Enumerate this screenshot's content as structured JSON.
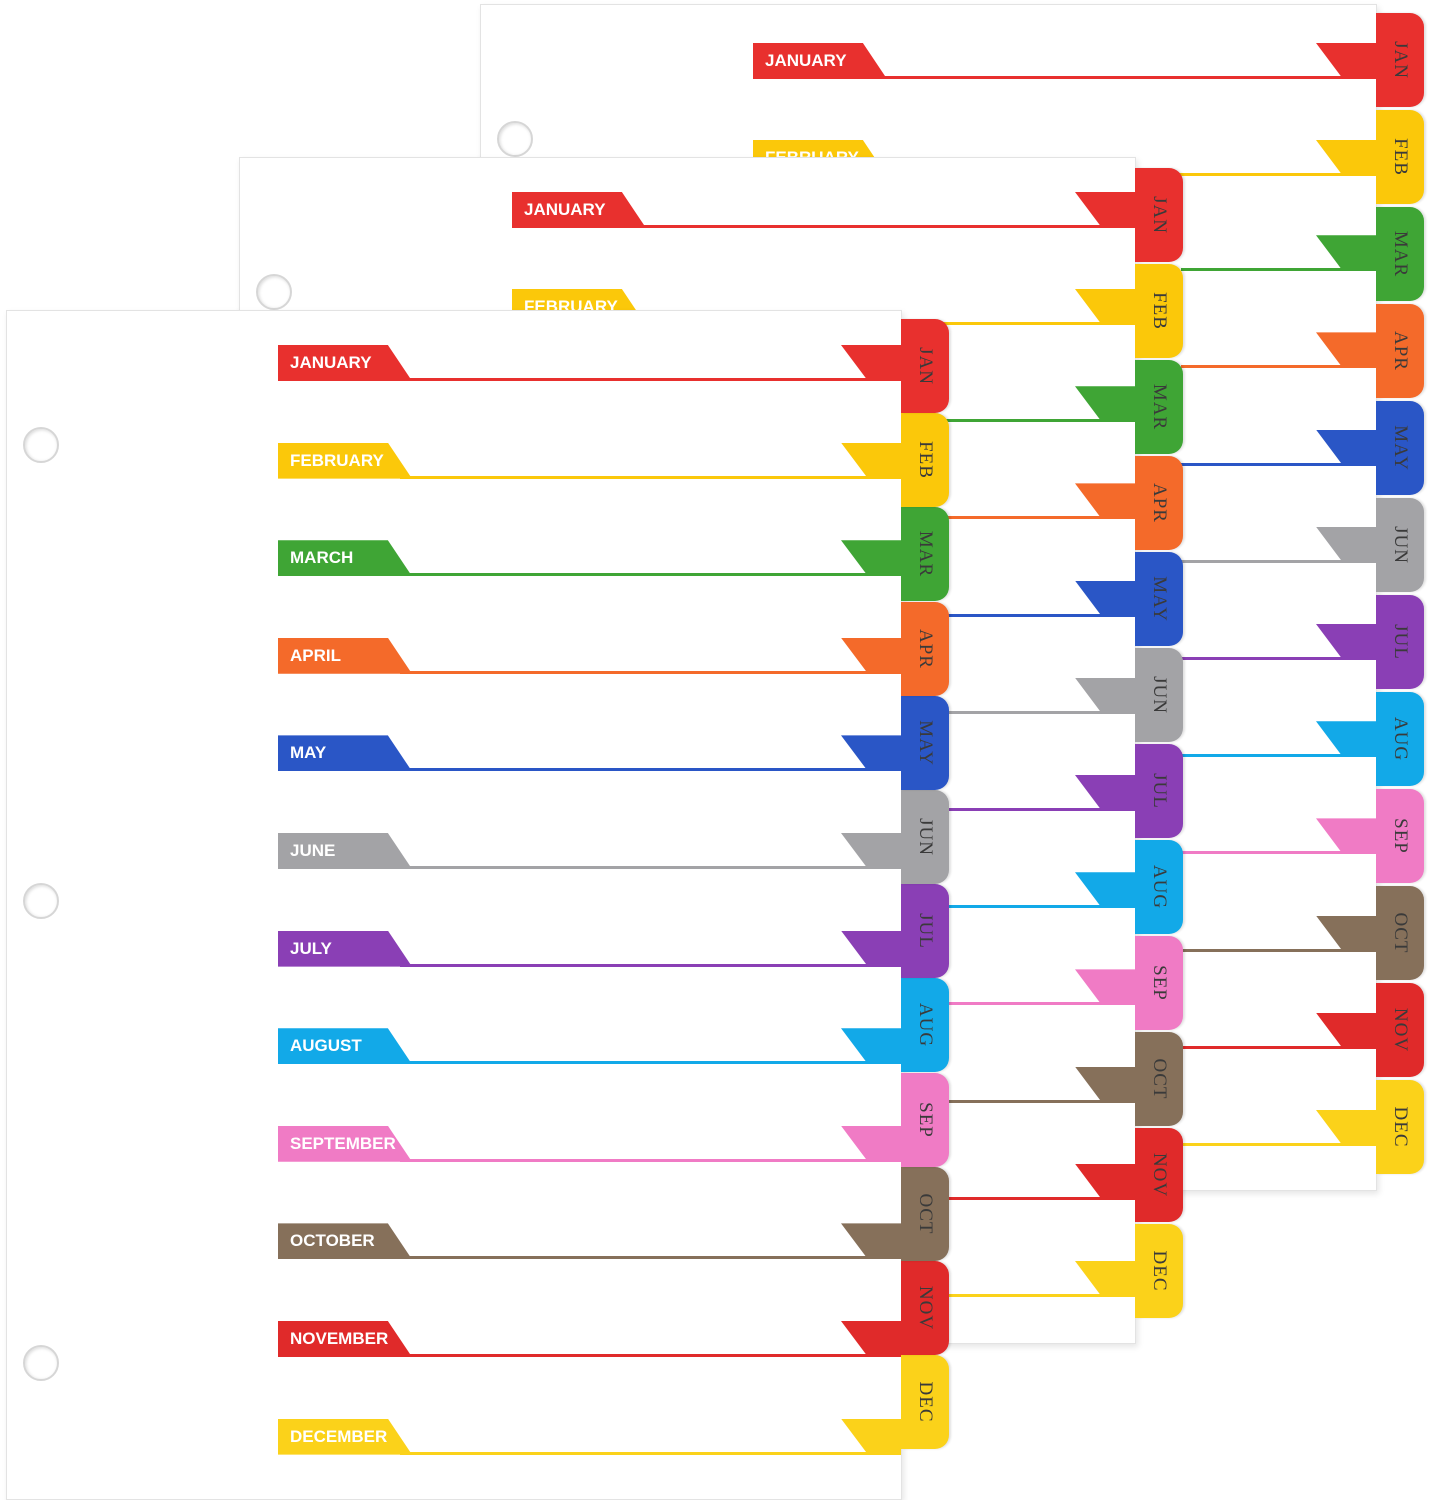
{
  "months_full": [
    "JANUARY",
    "FEBRUARY",
    "MARCH",
    "APRIL",
    "MAY",
    "JUNE",
    "JULY",
    "AUGUST",
    "SEPTEMBER",
    "OCTOBER",
    "NOVEMBER",
    "DECEMBER"
  ],
  "months_short": [
    "JAN",
    "FEB",
    "MAR",
    "APR",
    "MAY",
    "JUN",
    "JUL",
    "AUG",
    "SEP",
    "OCT",
    "NOV",
    "DEC"
  ],
  "colors": [
    "#e8302e",
    "#fbc80a",
    "#3fa535",
    "#f46a2a",
    "#2a56c6",
    "#a3a3a6",
    "#8a3fb5",
    "#12a9e8",
    "#f07bc5",
    "#86705a",
    "#e02a2a",
    "#fbd21a"
  ],
  "sheets": [
    {
      "id": "back"
    },
    {
      "id": "mid"
    },
    {
      "id": "front"
    }
  ]
}
